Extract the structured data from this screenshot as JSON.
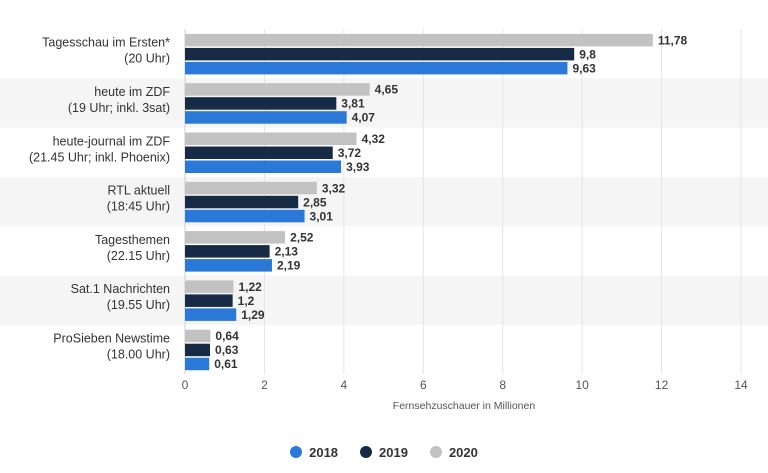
{
  "chart_data": {
    "type": "bar",
    "orientation": "horizontal",
    "title": "",
    "xlabel": "Fernsehzuschauer in Millionen",
    "ylabel": "",
    "xlim": [
      0,
      14
    ],
    "xticks": [
      0,
      2,
      4,
      6,
      8,
      10,
      12,
      14
    ],
    "grid": true,
    "legend_position": "bottom",
    "categories": [
      [
        "Tagesschau im Ersten*",
        "(20 Uhr)"
      ],
      [
        "heute im ZDF",
        "(19 Uhr; inkl. 3sat)"
      ],
      [
        "heute-journal im ZDF",
        "(21.45 Uhr; inkl. Phoenix)"
      ],
      [
        "RTL aktuell",
        "(18:45 Uhr)"
      ],
      [
        "Tagesthemen",
        "(22.15 Uhr)"
      ],
      [
        "Sat.1 Nachrichten",
        "(19.55 Uhr)"
      ],
      [
        "ProSieben Newstime",
        "(18.00 Uhr)"
      ]
    ],
    "series": [
      {
        "name": "2020",
        "color": "#c2c2c2",
        "values": [
          11.78,
          4.65,
          4.32,
          3.32,
          2.52,
          1.22,
          0.64
        ],
        "labels": [
          "11,78",
          "4,65",
          "4,32",
          "3,32",
          "2,52",
          "1,22",
          "0,64"
        ]
      },
      {
        "name": "2019",
        "color": "#172b46",
        "values": [
          9.8,
          3.81,
          3.72,
          2.85,
          2.13,
          1.2,
          0.63
        ],
        "labels": [
          "9,8",
          "3,81",
          "3,72",
          "2,85",
          "2,13",
          "1,2",
          "0,63"
        ]
      },
      {
        "name": "2018",
        "color": "#2a78d8",
        "values": [
          9.63,
          4.07,
          3.93,
          3.01,
          2.19,
          1.29,
          0.61
        ],
        "labels": [
          "9,63",
          "4,07",
          "3,93",
          "3,01",
          "2,19",
          "1,29",
          "0,61"
        ]
      }
    ]
  },
  "legend": [
    {
      "name": "2018",
      "color": "#2a78d8"
    },
    {
      "name": "2019",
      "color": "#172b46"
    },
    {
      "name": "2020",
      "color": "#c2c2c2"
    }
  ]
}
